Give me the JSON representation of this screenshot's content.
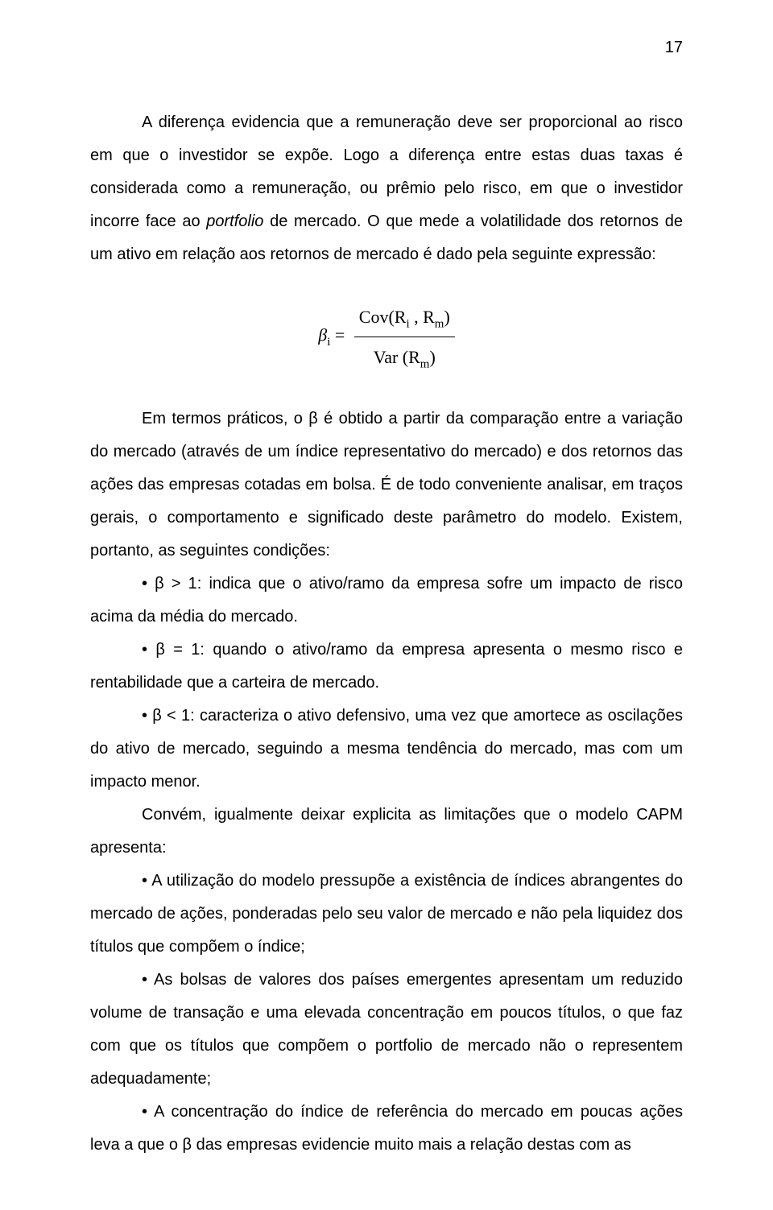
{
  "page_number": "17",
  "para1": "A diferença evidencia que a remuneração deve ser proporcional ao risco em que o investidor se expõe. Logo a diferença entre estas duas taxas é considerada como a remuneração, ou prêmio pelo risco, em que o investidor incorre face ao ",
  "para1_italic": "portfolio",
  "para1_tail": " de mercado. O que mede a volatilidade dos retornos de um ativo em relação aos retornos de mercado é dado pela seguinte expressão:",
  "formula": {
    "lhs_beta": "β",
    "lhs_sub": "i",
    "equals": " = ",
    "num_a": "Cov(R",
    "num_sub1": "i",
    "num_b": " , R",
    "num_sub2": "m",
    "num_c": ")",
    "den_a": "Var (R",
    "den_sub": "m",
    "den_b": ")"
  },
  "para2": "Em termos práticos, o β é obtido a partir da comparação entre a variação do mercado (através de um índice representativo do mercado) e dos retornos das ações das empresas cotadas em bolsa. É de todo conveniente analisar, em traços gerais, o comportamento e significado deste parâmetro do modelo. Existem, portanto, as seguintes condições:",
  "bul1_lead": "•  β > 1: indica que o ativo/ramo da empresa sofre um impacto de risco acima da média do mercado.",
  "bul2_lead": "•  β = 1: quando o ativo/ramo da empresa apresenta o mesmo risco e rentabilidade que a carteira de mercado.",
  "bul3_lead": "•  β < 1: caracteriza o ativo defensivo, uma vez que amortece as oscilações do ativo de mercado, seguindo a mesma tendência do mercado, mas com um impacto menor.",
  "para3": "Convém, igualmente deixar explicita as limitações que o modelo CAPM apresenta:",
  "bul4": "•  A utilização do modelo pressupõe a existência de índices abrangentes do mercado de ações, ponderadas pelo seu valor de mercado e não pela liquidez dos títulos que compõem o índice;",
  "bul5": "•  As bolsas de valores dos países emergentes apresentam um reduzido volume de transação e uma elevada concentração em poucos títulos, o que faz com que os títulos que compõem o portfolio de mercado não o representem adequadamente;",
  "bul6": "•  A concentração do índice de referência do mercado em poucas ações leva a que o β das empresas evidencie muito mais a relação destas com as"
}
